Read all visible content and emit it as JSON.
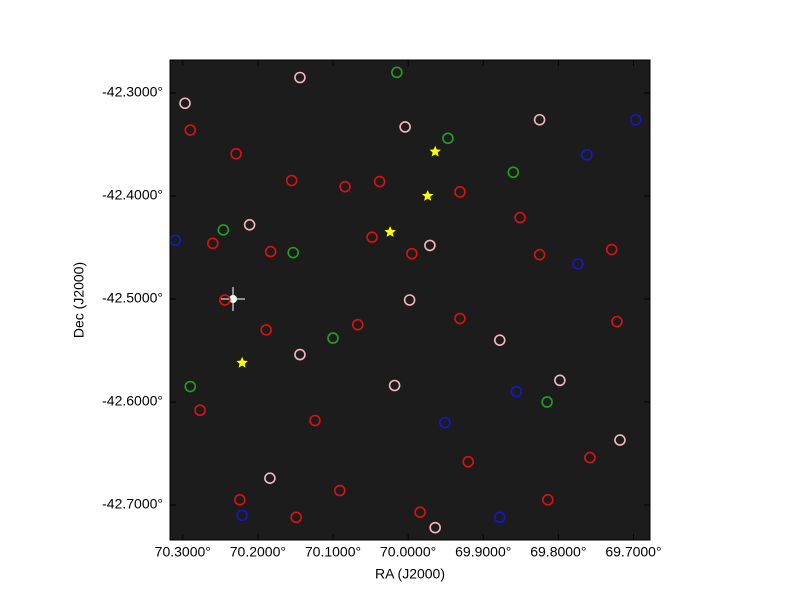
{
  "chart_data": {
    "type": "scatter",
    "xlabel": "RA (J2000)",
    "ylabel": "Dec (J2000)",
    "xlim": [
      70.317,
      69.678
    ],
    "ylim": [
      -42.734,
      -42.268
    ],
    "xticks": [
      {
        "value": 70.3,
        "label": "70.3000°"
      },
      {
        "value": 70.2,
        "label": "70.2000°"
      },
      {
        "value": 70.1,
        "label": "70.1000°"
      },
      {
        "value": 70.0,
        "label": "70.0000°"
      },
      {
        "value": 69.9,
        "label": "69.9000°"
      },
      {
        "value": 69.8,
        "label": "69.8000°"
      },
      {
        "value": 69.7,
        "label": "69.7000°"
      }
    ],
    "yticks": [
      {
        "value": -42.3,
        "label": "-42.3000°"
      },
      {
        "value": -42.4,
        "label": "-42.4000°"
      },
      {
        "value": -42.5,
        "label": "-42.5000°"
      },
      {
        "value": -42.6,
        "label": "-42.6000°"
      },
      {
        "value": -42.7,
        "label": "-42.7000°"
      }
    ],
    "series": [
      {
        "color": "#dd1111",
        "marker": "circle",
        "x": [
          70.29,
          70.229,
          70.155,
          70.084,
          70.038,
          69.931,
          69.851,
          69.729,
          70.26,
          70.183,
          70.048,
          69.995,
          69.825,
          70.244,
          70.189,
          70.067,
          69.931,
          69.722,
          70.277,
          70.124,
          69.92,
          69.758,
          70.224,
          70.091,
          69.984,
          69.814,
          70.149
        ],
        "values": [
          -42.336,
          -42.359,
          -42.385,
          -42.391,
          -42.386,
          -42.396,
          -42.421,
          -42.452,
          -42.446,
          -42.454,
          -42.44,
          -42.456,
          -42.457,
          -42.501,
          -42.53,
          -42.525,
          -42.519,
          -42.522,
          -42.608,
          -42.618,
          -42.658,
          -42.654,
          -42.695,
          -42.686,
          -42.707,
          -42.695,
          -42.712
        ]
      },
      {
        "color": "#f4b8c0",
        "marker": "circle",
        "x": [
          70.297,
          70.144,
          70.004,
          69.825,
          70.211,
          69.971,
          69.878,
          69.998,
          70.144,
          69.798,
          70.018,
          70.184,
          69.964,
          69.718
        ],
        "values": [
          -42.31,
          -42.285,
          -42.333,
          -42.326,
          -42.428,
          -42.448,
          -42.54,
          -42.501,
          -42.554,
          -42.579,
          -42.584,
          -42.674,
          -42.722,
          -42.637
        ]
      },
      {
        "color": "#1818c8",
        "marker": "circle",
        "x": [
          69.762,
          69.697,
          69.774,
          69.856,
          69.951,
          69.878,
          70.221,
          70.31
        ],
        "values": [
          -42.36,
          -42.326,
          -42.466,
          -42.59,
          -42.62,
          -42.712,
          -42.71,
          -42.443
        ]
      },
      {
        "color": "#22a022",
        "marker": "circle",
        "x": [
          70.015,
          69.947,
          69.86,
          70.246,
          70.153,
          70.1,
          70.29,
          69.815
        ],
        "values": [
          -42.28,
          -42.344,
          -42.377,
          -42.433,
          -42.455,
          -42.538,
          -42.585,
          -42.6
        ]
      },
      {
        "color": "#ffff00",
        "marker": "star",
        "x": [
          69.964,
          69.974,
          70.024,
          70.221
        ],
        "values": [
          -42.357,
          -42.4,
          -42.435,
          -42.562
        ]
      }
    ]
  }
}
